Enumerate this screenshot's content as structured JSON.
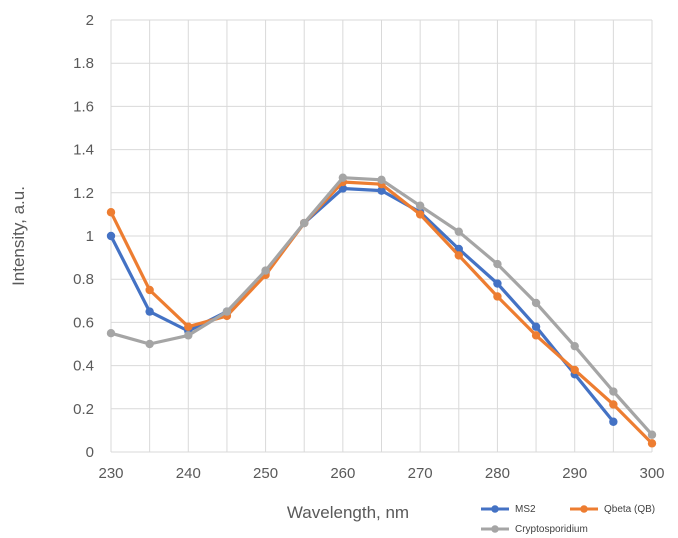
{
  "chart_data": {
    "type": "line",
    "title": "",
    "xlabel": "Wavelength, nm",
    "ylabel": "Intensity, a.u.",
    "xlim": [
      230,
      300
    ],
    "ylim": [
      0,
      2
    ],
    "x_ticks": [
      230,
      240,
      250,
      260,
      270,
      280,
      290,
      300
    ],
    "y_ticks": [
      "0",
      "0.2",
      "0.4",
      "0.6",
      "0.8",
      "1",
      "1.2",
      "1.4",
      "1.6",
      "1.8",
      "2"
    ],
    "grid": true,
    "legend_position": "bottom-right",
    "series": [
      {
        "name": "MS2",
        "color": "#4472C4",
        "x": [
          230,
          235,
          240,
          245,
          250,
          255,
          260,
          265,
          270,
          275,
          280,
          285,
          290,
          295
        ],
        "y": [
          1.0,
          0.65,
          0.56,
          0.65,
          0.83,
          1.06,
          1.22,
          1.21,
          1.11,
          0.94,
          0.78,
          0.58,
          0.36,
          0.14
        ]
      },
      {
        "name": "Qbeta (QB)",
        "color": "#ED7D31",
        "x": [
          230,
          235,
          240,
          245,
          250,
          255,
          260,
          265,
          270,
          275,
          280,
          285,
          290,
          295,
          300
        ],
        "y": [
          1.11,
          0.75,
          0.58,
          0.63,
          0.82,
          1.06,
          1.25,
          1.24,
          1.1,
          0.91,
          0.72,
          0.54,
          0.38,
          0.22,
          0.04
        ]
      },
      {
        "name": "Cryptosporidium",
        "color": "#A5A5A5",
        "x": [
          230,
          235,
          240,
          245,
          250,
          255,
          260,
          265,
          270,
          275,
          280,
          285,
          290,
          295,
          300
        ],
        "y": [
          0.55,
          0.5,
          0.54,
          0.65,
          0.84,
          1.06,
          1.27,
          1.26,
          1.14,
          1.02,
          0.87,
          0.69,
          0.49,
          0.28,
          0.08
        ]
      }
    ]
  }
}
